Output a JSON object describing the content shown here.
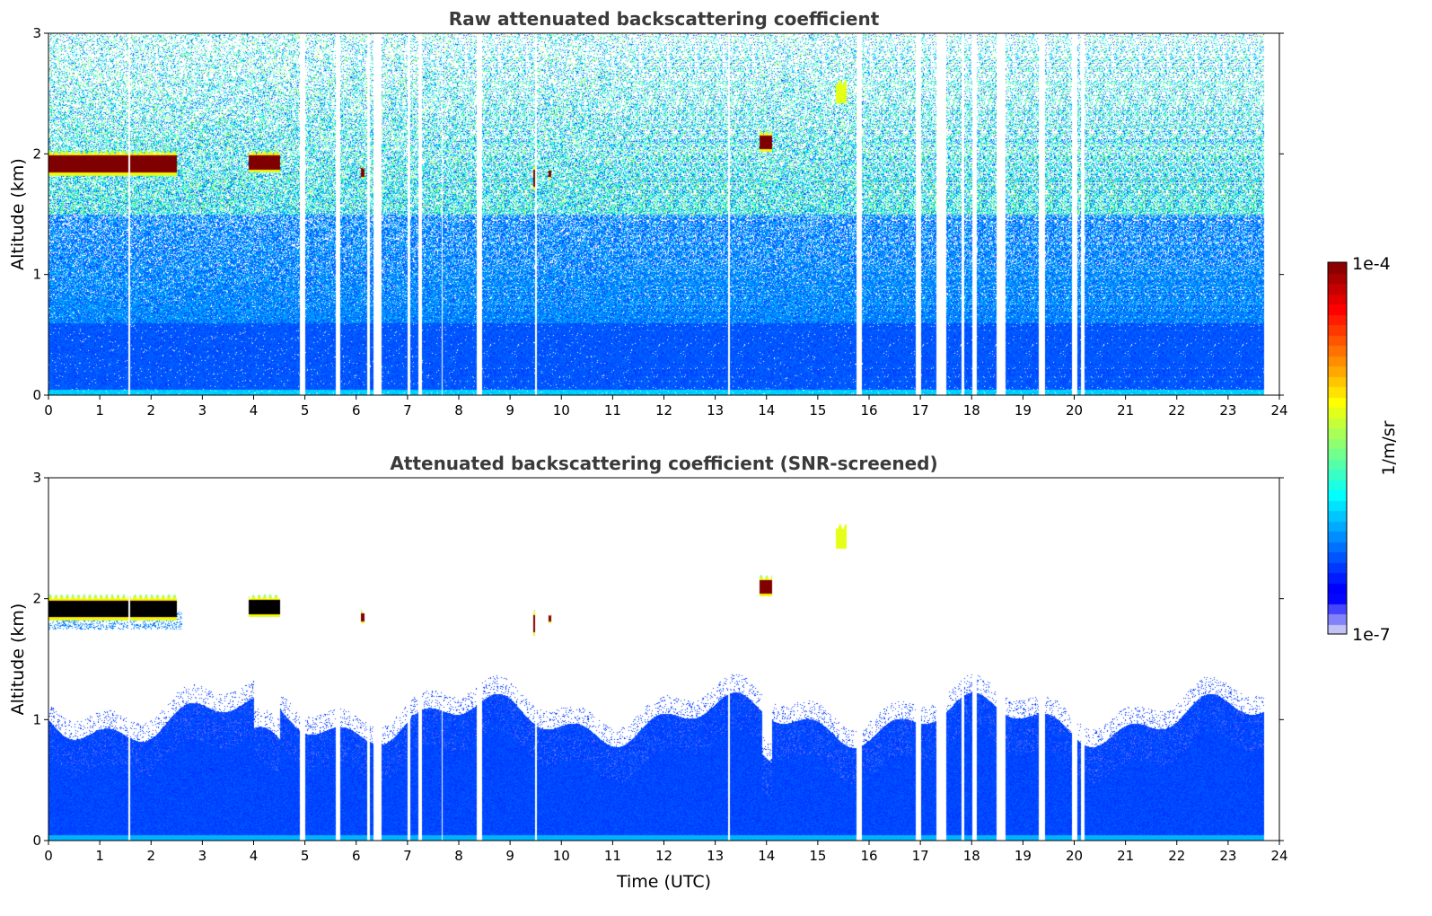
{
  "chart_data": [
    {
      "type": "heatmap",
      "title": "Raw attenuated backscattering coefficient",
      "xlabel": "",
      "ylabel": "Altitude (km)",
      "xlim": [
        0,
        24
      ],
      "ylim": [
        0,
        3
      ],
      "xticks": [
        "0",
        "1",
        "2",
        "3",
        "4",
        "5",
        "6",
        "7",
        "8",
        "9",
        "10",
        "11",
        "12",
        "13",
        "14",
        "15",
        "16",
        "17",
        "18",
        "19",
        "20",
        "21",
        "22",
        "23",
        "24"
      ],
      "yticks": [
        "0",
        "1",
        "2",
        "3"
      ],
      "screened": false
    },
    {
      "type": "heatmap",
      "title": "Attenuated backscattering coefficient (SNR-screened)",
      "xlabel": "Time (UTC)",
      "ylabel": "Altitude (km)",
      "xlim": [
        0,
        24
      ],
      "ylim": [
        0,
        3
      ],
      "xticks": [
        "0",
        "1",
        "2",
        "3",
        "4",
        "5",
        "6",
        "7",
        "8",
        "9",
        "10",
        "11",
        "12",
        "13",
        "14",
        "15",
        "16",
        "17",
        "18",
        "19",
        "20",
        "21",
        "22",
        "23",
        "24"
      ],
      "yticks": [
        "0",
        "1",
        "2",
        "3"
      ],
      "screened": true
    }
  ],
  "features": {
    "data_end_hour": 23.7,
    "data_gaps_hours": [
      [
        1.55,
        1.58
      ],
      [
        4.9,
        5.0
      ],
      [
        5.6,
        5.68
      ],
      [
        6.2,
        6.25
      ],
      [
        6.33,
        6.48
      ],
      [
        7.0,
        7.05
      ],
      [
        7.2,
        7.28
      ],
      [
        7.65,
        7.68
      ],
      [
        8.35,
        8.45
      ],
      [
        9.48,
        9.51
      ],
      [
        13.25,
        13.27
      ],
      [
        15.75,
        15.85
      ],
      [
        16.9,
        17.0
      ],
      [
        17.3,
        17.5
      ],
      [
        17.8,
        17.85
      ],
      [
        18.0,
        18.1
      ],
      [
        18.48,
        18.65
      ],
      [
        19.3,
        19.42
      ],
      [
        19.95,
        20.05
      ],
      [
        20.12,
        20.2
      ]
    ],
    "cloud_layers": [
      {
        "start": 0.0,
        "end": 2.5,
        "base_km": 1.82,
        "top_km": 2.02
      },
      {
        "start": 3.9,
        "end": 4.5,
        "base_km": 1.85,
        "top_km": 2.02
      },
      {
        "start": 6.08,
        "end": 6.15,
        "base_km": 1.8,
        "top_km": 1.9
      },
      {
        "start": 9.45,
        "end": 9.5,
        "base_km": 1.7,
        "top_km": 1.9
      },
      {
        "start": 9.75,
        "end": 9.8,
        "base_km": 1.8,
        "top_km": 1.88
      },
      {
        "start": 13.85,
        "end": 14.1,
        "base_km": 2.02,
        "top_km": 2.18
      },
      {
        "start": 15.35,
        "end": 15.55,
        "base_km": 2.42,
        "top_km": 2.6
      }
    ],
    "boundary_layer_top_km": 1.0
  },
  "colorbar": {
    "label": "1/m/sr",
    "min_label": "1e-7",
    "max_label": "1e-4",
    "min": 1e-07,
    "max": 0.0001,
    "scale": "log",
    "colormap": "jet"
  }
}
